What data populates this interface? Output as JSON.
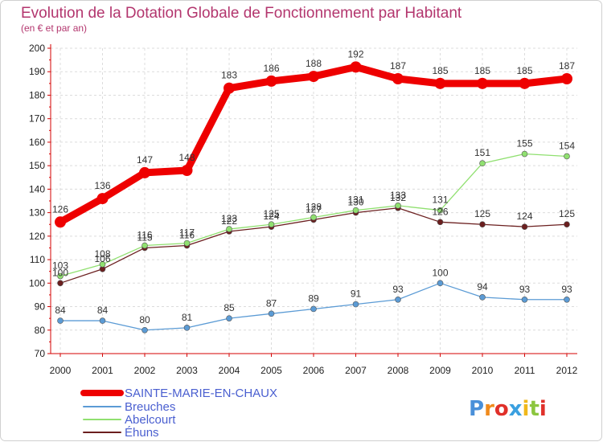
{
  "header": {
    "title": "Evolution de la Dotation Globale de Fonctionnement par Habitant",
    "subtitle": "(en € et par an)"
  },
  "logo": {
    "text": "Proxiti"
  },
  "chart_data": {
    "type": "line",
    "title": "Evolution de la Dotation Globale de Fonctionnement par Habitant",
    "subtitle": "(en € et par an)",
    "xlabel": "",
    "ylabel": "",
    "x": [
      "2000",
      "2001",
      "2002",
      "2003",
      "2004",
      "2005",
      "2006",
      "2007",
      "2008",
      "2009",
      "2010",
      "2011",
      "2012"
    ],
    "ylim": [
      70,
      200
    ],
    "yticks": [
      70,
      80,
      90,
      100,
      110,
      120,
      130,
      140,
      150,
      160,
      170,
      180,
      190,
      200
    ],
    "grid": true,
    "legend_placement": "bottom-left",
    "series": [
      {
        "name": "SAINTE-MARIE-EN-CHAUX",
        "color": "#ee0000",
        "values": [
          126,
          136,
          147,
          148,
          183,
          186,
          188,
          192,
          187,
          185,
          185,
          185,
          187
        ]
      },
      {
        "name": "Breuches",
        "color": "#5b9bd5",
        "values": [
          84,
          84,
          80,
          81,
          85,
          87,
          89,
          91,
          93,
          100,
          94,
          93,
          93
        ]
      },
      {
        "name": "Abelcourt",
        "color": "#90e070",
        "values": [
          103,
          108,
          116,
          117,
          123,
          125,
          128,
          131,
          133,
          131,
          151,
          155,
          154
        ]
      },
      {
        "name": "Éhuns",
        "color": "#6b1f1f",
        "values": [
          100,
          106,
          115,
          116,
          122,
          124,
          127,
          130,
          132,
          126,
          125,
          124,
          125
        ]
      }
    ]
  }
}
